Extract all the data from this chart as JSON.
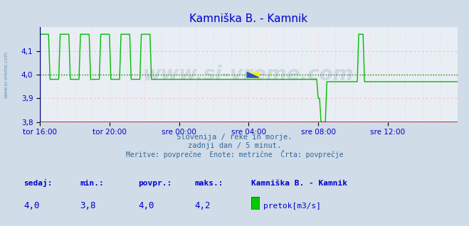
{
  "title": "Kamniška B. - Kamnik",
  "title_color": "#0000cc",
  "bg_color": "#d0dce8",
  "plot_bg_color": "#e8eef4",
  "grid_color_major": "#ffaaaa",
  "grid_color_minor": "#ffcccc",
  "avg_line_color": "#009900",
  "avg_value": 4.0,
  "line_color": "#00bb00",
  "ylim": [
    3.8,
    4.2
  ],
  "yticks": [
    3.8,
    3.9,
    4.0,
    4.1
  ],
  "xtick_labels": [
    "tor 16:00",
    "tor 20:00",
    "sre 00:00",
    "sre 04:00",
    "sre 08:00",
    "sre 12:00"
  ],
  "xtick_positions": [
    0,
    48,
    96,
    144,
    192,
    240
  ],
  "total_points": 289,
  "subtitle1": "Slovenija / reke in morje.",
  "subtitle2": "zadnji dan / 5 minut.",
  "subtitle3": "Meritve: povprečne  Enote: metrične  Črta: povprečje",
  "footer_labels": [
    "sedaj:",
    "min.:",
    "povpr.:",
    "maks.:"
  ],
  "footer_values": [
    "4,0",
    "3,8",
    "4,0",
    "4,2"
  ],
  "footer_station": "Kamniška B. - Kamnik",
  "footer_legend": "pretok[m3/s]",
  "legend_color": "#00cc00",
  "x_axis_color": "#cc0000",
  "watermark_text": "www.si-vreme.com",
  "watermark_color": "#1a3a6a",
  "watermark_alpha": 0.12,
  "left_label": "www.si-vreme.com",
  "left_label_color": "#5588aa"
}
